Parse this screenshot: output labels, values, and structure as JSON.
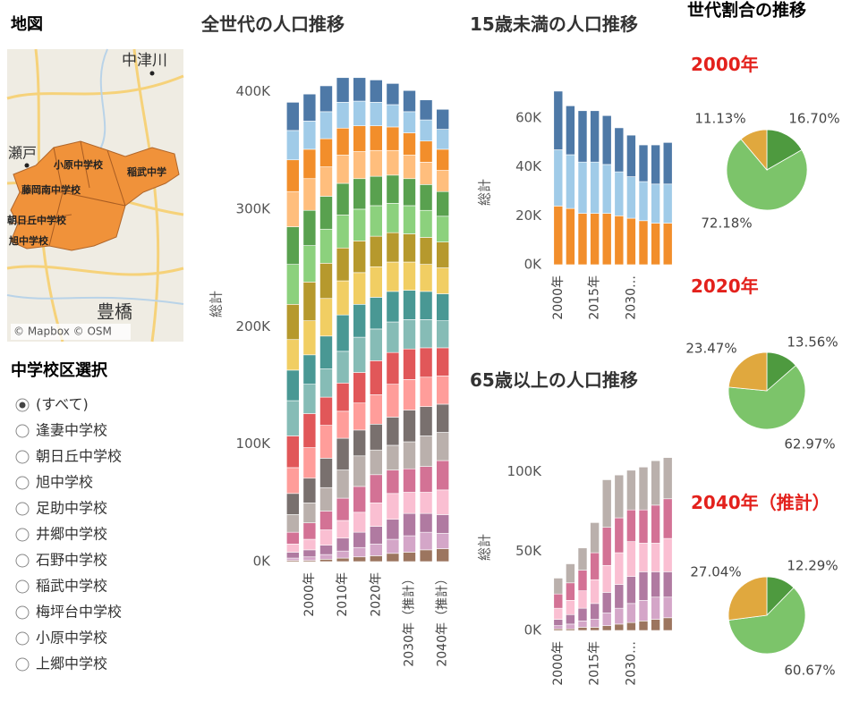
{
  "map": {
    "title": "地図",
    "labels": [
      "中津川",
      "瀬戸",
      "小原中学校",
      "稲武中学",
      "藤岡南中学校",
      "朝日丘中学校",
      "旭中学校",
      "豊橋"
    ],
    "attribution": "© Mapbox © OSM"
  },
  "filter": {
    "title": "中学校区選択",
    "options": [
      "(すべて)",
      "逢妻中学校",
      "朝日丘中学校",
      "旭中学校",
      "足助中学校",
      "井郷中学校",
      "石野中学校",
      "稲武中学校",
      "梅坪台中学校",
      "小原中学校",
      "上郷中学校"
    ],
    "selected": 0
  },
  "pie_section_title": "世代割合の推移",
  "chart_data": [
    {
      "type": "bar",
      "stacked": true,
      "grid": false,
      "title": "全世代の人口推移",
      "y_label": "総計",
      "categories": [
        null,
        "2000年",
        null,
        "2010年",
        null,
        "2020年",
        null,
        "2030年（推計）",
        null,
        "2040年（推計）"
      ],
      "ylim": [
        0,
        440000
      ],
      "yticks": [
        {
          "value": 0,
          "label": "0K"
        },
        {
          "value": 100000,
          "label": "100K"
        },
        {
          "value": 200000,
          "label": "200K"
        },
        {
          "value": 300000,
          "label": "300K"
        },
        {
          "value": 400000,
          "label": "400K"
        }
      ],
      "series": [
        {
          "color": "#9c755f",
          "values": [
            1000,
            1000,
            2000,
            3000,
            4000,
            5000,
            7000,
            8000,
            10000,
            11000
          ]
        },
        {
          "color": "#d4a6c8",
          "values": [
            2000,
            3000,
            4000,
            6000,
            8000,
            10000,
            12000,
            14000,
            15000,
            13000
          ]
        },
        {
          "color": "#b07aa1",
          "values": [
            5000,
            6000,
            8000,
            11000,
            13000,
            15000,
            17000,
            19000,
            16000,
            16000
          ]
        },
        {
          "color": "#fabfd2",
          "values": [
            7000,
            9000,
            13000,
            15000,
            17000,
            20000,
            22000,
            18000,
            18000,
            21000
          ]
        },
        {
          "color": "#d37295",
          "values": [
            10000,
            14000,
            16000,
            19000,
            22000,
            24000,
            20000,
            20000,
            22000,
            25000
          ]
        },
        {
          "color": "#bab0ac",
          "values": [
            15000,
            17000,
            20000,
            24000,
            26000,
            21000,
            21000,
            23000,
            26000,
            24000
          ]
        },
        {
          "color": "#79706e",
          "values": [
            18000,
            21000,
            25000,
            27000,
            22000,
            22000,
            24000,
            27000,
            25000,
            24000
          ]
        },
        {
          "color": "#ff9d9a",
          "values": [
            22000,
            26000,
            28000,
            23000,
            23000,
            25000,
            28000,
            26000,
            25000,
            24000
          ]
        },
        {
          "color": "#e15759",
          "values": [
            27000,
            29000,
            24000,
            24000,
            26000,
            29000,
            27000,
            26000,
            25000,
            24000
          ]
        },
        {
          "color": "#86bcb6",
          "values": [
            30000,
            25000,
            24000,
            27000,
            30000,
            27000,
            26000,
            25000,
            24000,
            23000
          ]
        },
        {
          "color": "#499894",
          "values": [
            26000,
            25000,
            28000,
            31000,
            28000,
            27000,
            26000,
            25000,
            24000,
            23000
          ]
        },
        {
          "color": "#f1ce63",
          "values": [
            26000,
            29000,
            32000,
            29000,
            27000,
            26000,
            25000,
            24000,
            23000,
            22000
          ]
        },
        {
          "color": "#b6992d",
          "values": [
            30000,
            33000,
            30000,
            28000,
            27000,
            26000,
            25000,
            24000,
            23000,
            22000
          ]
        },
        {
          "color": "#8cd17d",
          "values": [
            34000,
            31000,
            29000,
            28000,
            27000,
            26000,
            25000,
            24000,
            23000,
            22000
          ]
        },
        {
          "color": "#59a14f",
          "values": [
            32000,
            30000,
            28000,
            27000,
            26000,
            25000,
            24000,
            23000,
            22000,
            21000
          ]
        },
        {
          "color": "#ffbe7d",
          "values": [
            30000,
            27000,
            25000,
            24000,
            23000,
            22000,
            21000,
            20000,
            19000,
            18000
          ]
        },
        {
          "color": "#f28e2b",
          "values": [
            27000,
            25000,
            24000,
            23000,
            22000,
            21000,
            20000,
            19000,
            18000,
            18000
          ]
        },
        {
          "color": "#a0cbe8",
          "values": [
            25000,
            24000,
            23000,
            22000,
            21000,
            20000,
            19000,
            18000,
            18000,
            17000
          ]
        },
        {
          "color": "#4e79a7",
          "values": [
            24000,
            23000,
            22000,
            21000,
            20000,
            19000,
            18000,
            18000,
            17000,
            17000
          ]
        }
      ]
    },
    {
      "type": "bar",
      "stacked": true,
      "grid": false,
      "title": "15歳未満の人口推移",
      "y_label": "総計",
      "categories": [
        "2000年",
        null,
        null,
        "2015年",
        null,
        null,
        "2030…",
        null,
        null,
        null
      ],
      "ylim": [
        0,
        75000
      ],
      "yticks": [
        {
          "value": 0,
          "label": "0K"
        },
        {
          "value": 20000,
          "label": "20K"
        },
        {
          "value": 40000,
          "label": "40K"
        },
        {
          "value": 60000,
          "label": "60K"
        }
      ],
      "series": [
        {
          "color": "#f28e2b",
          "values": [
            24000,
            23000,
            21000,
            21000,
            21000,
            20000,
            19000,
            18000,
            17000,
            17000
          ]
        },
        {
          "color": "#a0cbe8",
          "values": [
            23000,
            22000,
            21000,
            21000,
            20000,
            18000,
            17000,
            16000,
            16000,
            16000
          ]
        },
        {
          "color": "#4e79a7",
          "values": [
            24000,
            20000,
            21000,
            21000,
            20000,
            18000,
            17000,
            15000,
            16000,
            17000
          ]
        }
      ]
    },
    {
      "type": "bar",
      "stacked": true,
      "grid": false,
      "title": "65歳以上の人口推移",
      "y_label": "総計",
      "categories": [
        "2000年",
        null,
        null,
        "2015年",
        null,
        null,
        "2030…",
        null,
        null,
        null
      ],
      "ylim": [
        0,
        115000
      ],
      "yticks": [
        {
          "value": 0,
          "label": "0K"
        },
        {
          "value": 50000,
          "label": "50K"
        },
        {
          "value": 100000,
          "label": "100K"
        }
      ],
      "series": [
        {
          "color": "#9c755f",
          "values": [
            1000,
            1000,
            2000,
            2000,
            3000,
            4000,
            5000,
            6000,
            7000,
            8000
          ]
        },
        {
          "color": "#d4a6c8",
          "values": [
            2000,
            3000,
            4000,
            5000,
            8000,
            10000,
            12000,
            13000,
            14000,
            13000
          ]
        },
        {
          "color": "#b07aa1",
          "values": [
            4000,
            6000,
            8000,
            10000,
            13000,
            15000,
            17000,
            18000,
            16000,
            16000
          ]
        },
        {
          "color": "#fabfd2",
          "values": [
            7000,
            9000,
            11000,
            15000,
            17000,
            20000,
            22000,
            18000,
            18000,
            21000
          ]
        },
        {
          "color": "#d37295",
          "values": [
            9000,
            11000,
            13000,
            17000,
            24000,
            22000,
            20000,
            21000,
            24000,
            25000
          ]
        },
        {
          "color": "#bab0ac",
          "values": [
            10000,
            12000,
            14000,
            19000,
            30000,
            27000,
            25000,
            27000,
            28000,
            26000
          ]
        }
      ]
    },
    {
      "type": "pie",
      "title": "2000年",
      "values": [
        16.7,
        72.18,
        11.13
      ],
      "value_labels": [
        "16.70%",
        "72.18%",
        "11.13%"
      ],
      "colors": [
        "#4e9a3f",
        "#7cc46a",
        "#e0a83e"
      ]
    },
    {
      "type": "pie",
      "title": "2020年",
      "values": [
        13.56,
        62.97,
        23.47
      ],
      "value_labels": [
        "13.56%",
        "62.97%",
        "23.47%"
      ],
      "colors": [
        "#4e9a3f",
        "#7cc46a",
        "#e0a83e"
      ]
    },
    {
      "type": "pie",
      "title": "2040年（推計）",
      "values": [
        12.29,
        60.67,
        27.04
      ],
      "value_labels": [
        "12.29%",
        "60.67%",
        "27.04%"
      ],
      "colors": [
        "#4e9a3f",
        "#7cc46a",
        "#e0a83e"
      ]
    }
  ]
}
